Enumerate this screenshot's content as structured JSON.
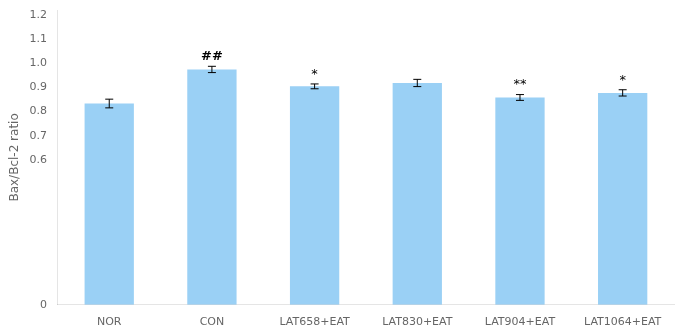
{
  "chart_data": {
    "type": "bar",
    "ylabel": "Bax/Bcl-2 ratio",
    "categories": [
      "NOR",
      "CON",
      "LAT658+EAT",
      "LAT830+EAT",
      "LAT904+EAT",
      "LAT1064+EAT"
    ],
    "values": [
      0.833,
      0.974,
      0.904,
      0.918,
      0.858,
      0.877
    ],
    "errors": [
      0.018,
      0.013,
      0.01,
      0.015,
      0.012,
      0.013
    ],
    "annotations": [
      null,
      "##",
      "*",
      null,
      "**",
      "*"
    ],
    "ylim": [
      0,
      1.22
    ],
    "yticks": [
      0,
      0.6,
      0.7,
      0.8,
      0.9,
      {
        "value": 1.0,
        "label": "1.0"
      },
      1.1,
      1.2
    ],
    "grid": false
  }
}
